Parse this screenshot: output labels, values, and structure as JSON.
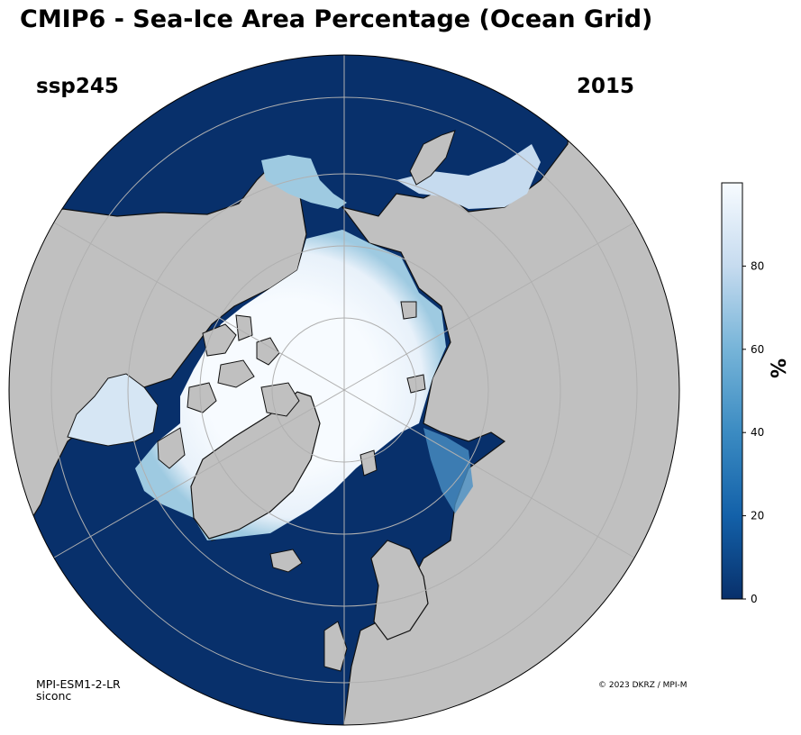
{
  "header": {
    "title": "CMIP6 - Sea-Ice Area Percentage (Ocean Grid)",
    "scenario": "ssp245",
    "year": "2015"
  },
  "footer": {
    "model": "MPI-ESM1-2-LR",
    "variable": "siconc",
    "credit": "© 2023 DKRZ / MPI-M"
  },
  "colorbar": {
    "label": "%",
    "ticks": [
      "0",
      "20",
      "40",
      "60",
      "80"
    ],
    "range": [
      0,
      100
    ],
    "colors": {
      "low": "#08306b",
      "mid": "#6baed6",
      "high": "#f7fbff"
    }
  },
  "map": {
    "projection": "north-polar-stereographic",
    "land_color": "#c0c0c0",
    "ocean_color": "#08306b",
    "gridline_color": "#b0b0b0"
  }
}
